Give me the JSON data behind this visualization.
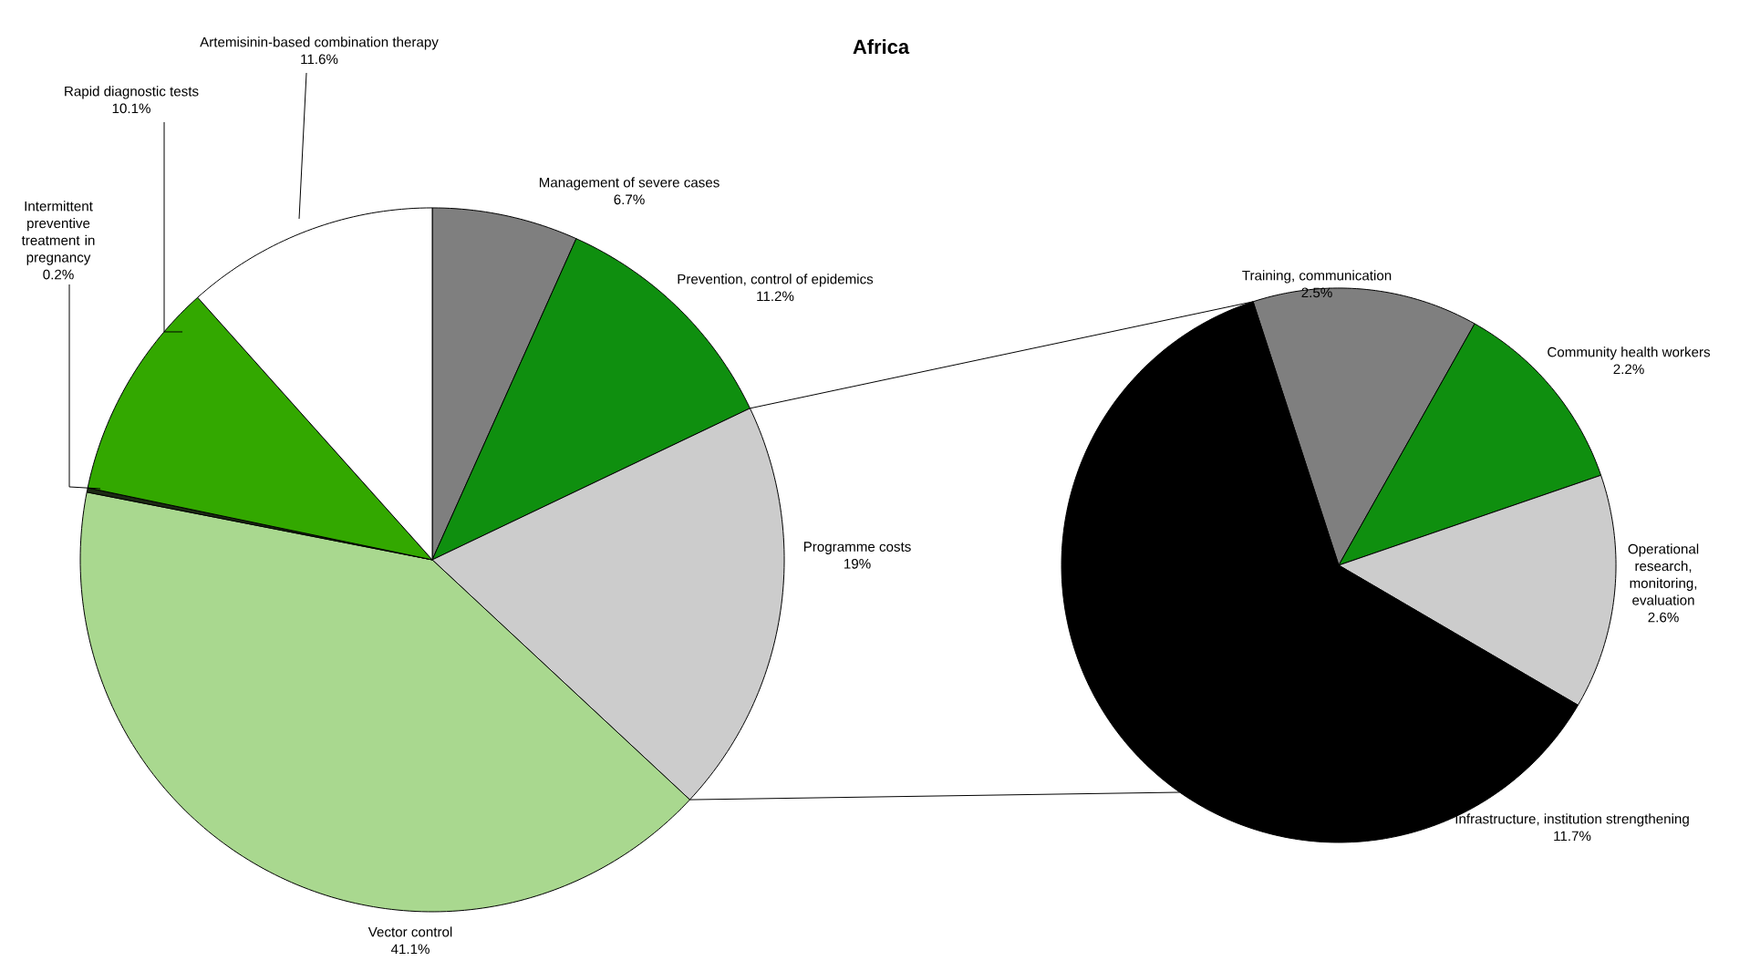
{
  "chart_data": [
    {
      "type": "pie",
      "title": "Africa",
      "categories": [
        "Management of severe cases",
        "Prevention, control of epidemics",
        "Programme costs",
        "Vector control",
        "Intermittent preventive treatment in pregnancy",
        "Rapid diagnostic tests",
        "Artemisinin-based combination therapy"
      ],
      "values": [
        6.7,
        11.2,
        19,
        41.1,
        0.2,
        10.1,
        11.6
      ],
      "value_labels": [
        "6.7%",
        "11.2%",
        "19%",
        "41.1%",
        "0.2%",
        "10.1%",
        "11.6%"
      ],
      "colors": [
        "#7f7f7f",
        "#0f8f0f",
        "#cccccc",
        "#a9d88f",
        "#1c2a14",
        "#33a800",
        "#ffffff"
      ]
    },
    {
      "type": "pie",
      "categories": [
        "Training, communication",
        "Community health workers",
        "Operational research, monitoring, evaluation",
        "Infrastructure, institution strengthening"
      ],
      "values": [
        2.5,
        2.2,
        2.6,
        11.7
      ],
      "value_labels": [
        "2.5%",
        "2.2%",
        "2.6%",
        "11.7%"
      ],
      "colors": [
        "#7f7f7f",
        "#0f8f0f",
        "#cccccc",
        "#000000"
      ]
    }
  ]
}
